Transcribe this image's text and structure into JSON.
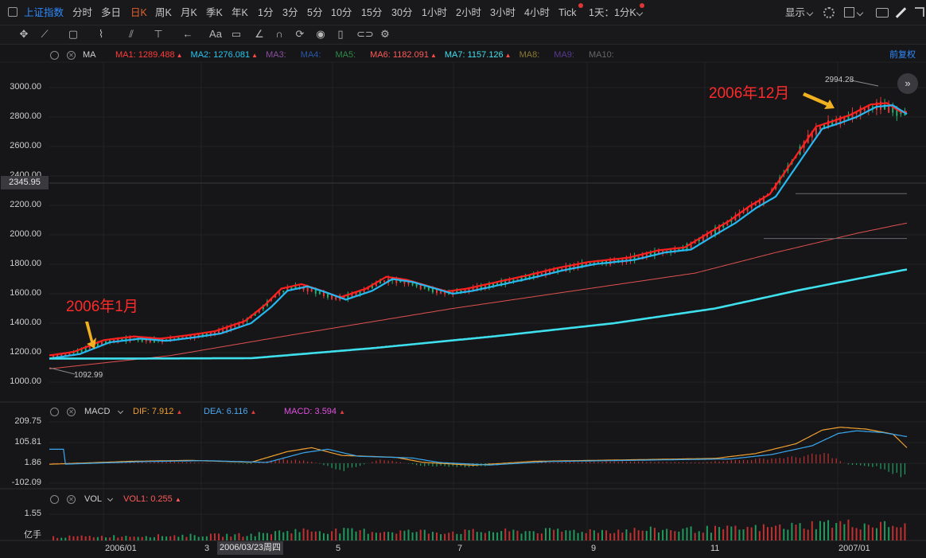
{
  "topbar": {
    "symbol": "上证指数",
    "periods": [
      "分时",
      "多日",
      "日K",
      "周K",
      "月K",
      "季K",
      "年K",
      "1分",
      "3分",
      "5分",
      "10分",
      "15分",
      "30分",
      "1小时",
      "2小时",
      "3小时",
      "4小时",
      "Tick",
      "1天：1分K"
    ],
    "active_period": "日K",
    "display_label": "显示"
  },
  "legend_main": {
    "title": "MA",
    "items": [
      {
        "label": "MA1:",
        "value": "1289.488",
        "color": "#ff3b3b",
        "arrow": true
      },
      {
        "label": "MA2:",
        "value": "1276.081",
        "color": "#26c6f0",
        "arrow": true
      },
      {
        "label": "MA3:",
        "value": "",
        "color": "#8a4fa0",
        "arrow": false
      },
      {
        "label": "MA4:",
        "value": "",
        "color": "#2a58a8",
        "arrow": false
      },
      {
        "label": "MA5:",
        "value": "",
        "color": "#2f8a4a",
        "arrow": false
      },
      {
        "label": "MA6:",
        "value": "1182.091",
        "color": "#ff5a5a",
        "arrow": true
      },
      {
        "label": "MA7:",
        "value": "1157.126",
        "color": "#3fe0ee",
        "arrow": true
      },
      {
        "label": "MA8:",
        "value": "",
        "color": "#8a7a30",
        "arrow": false
      },
      {
        "label": "MA9:",
        "value": "",
        "color": "#5a3a90",
        "arrow": false
      },
      {
        "label": "MA10:",
        "value": "",
        "color": "#666666",
        "arrow": false
      }
    ],
    "adjust_label": "前复权"
  },
  "main_axis": {
    "labels": [
      "3000.00",
      "2800.00",
      "2600.00",
      "2400.00",
      "2200.00",
      "2000.00",
      "1800.00",
      "1600.00",
      "1400.00",
      "1200.00",
      "1000.00"
    ],
    "crosshair_value": "2345.95"
  },
  "annotations": {
    "start": "2006年1月",
    "end": "2006年12月",
    "low": "1092.99",
    "high": "2994.28"
  },
  "legend_macd": {
    "title": "MACD",
    "dif_label": "DIF:",
    "dif_value": "7.912",
    "dea_label": "DEA:",
    "dea_value": "6.116",
    "macd_label": "MACD:",
    "macd_value": "3.594"
  },
  "macd_axis": {
    "labels": [
      "209.75",
      "105.81",
      "1.86",
      "-102.09"
    ]
  },
  "legend_vol": {
    "title": "VOL",
    "vol1_label": "VOL1:",
    "vol1_value": "0.255"
  },
  "vol_axis": {
    "labels": [
      "1.55",
      "亿手"
    ]
  },
  "x_axis": {
    "labels": [
      "2006/01",
      "3",
      "5",
      "7",
      "9",
      "11",
      "2007/01"
    ],
    "crosshair_date": "2006/03/23周四"
  },
  "colors": {
    "up": "#e03a3a",
    "down": "#25b06a",
    "bg": "#161618"
  }
}
